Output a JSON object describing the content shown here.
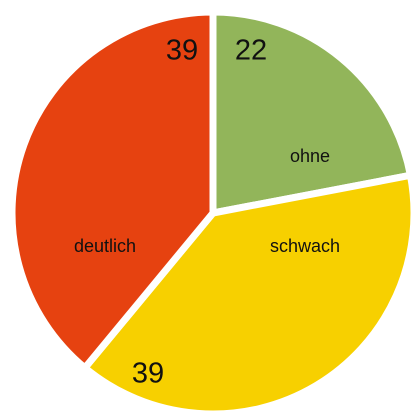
{
  "chart_data": {
    "type": "pie",
    "categories": [
      "ohne",
      "schwach",
      "deutlich"
    ],
    "values": [
      22,
      39,
      39
    ],
    "colors": [
      "#92b55a",
      "#f7d000",
      "#e64210"
    ]
  }
}
